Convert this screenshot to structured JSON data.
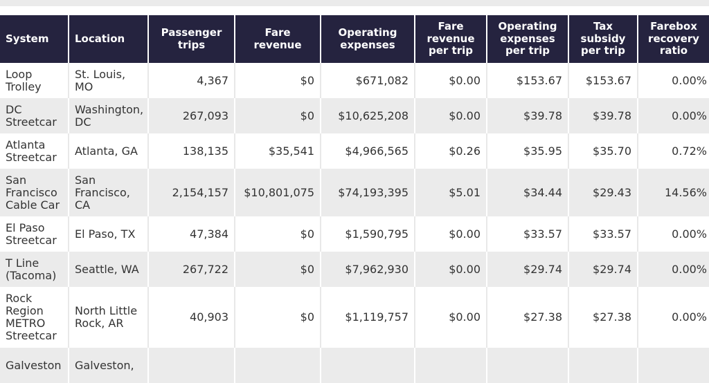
{
  "headers": [
    "System",
    "Location",
    "Passenger trips",
    "Fare revenue",
    "Operating expenses",
    "Fare revenue per trip",
    "Operating expenses per trip",
    "Tax subsidy per trip",
    "Farebox recovery ratio"
  ],
  "rows": [
    [
      "Loop Trolley",
      "St. Louis, MO",
      "4,367",
      "$0",
      "$671,082",
      "$0.00",
      "$153.67",
      "$153.67",
      "0.00%"
    ],
    [
      "DC Streetcar",
      "Washington, DC",
      "267,093",
      "$0",
      "$10,625,208",
      "$0.00",
      "$39.78",
      "$39.78",
      "0.00%"
    ],
    [
      "Atlanta Streetcar",
      "Atlanta, GA",
      "138,135",
      "$35,541",
      "$4,966,565",
      "$0.26",
      "$35.95",
      "$35.70",
      "0.72%"
    ],
    [
      "San Francisco Cable Car",
      "San Francisco, CA",
      "2,154,157",
      "$10,801,075",
      "$74,193,395",
      "$5.01",
      "$34.44",
      "$29.43",
      "14.56%"
    ],
    [
      "El Paso Streetcar",
      "El Paso, TX",
      "47,384",
      "$0",
      "$1,590,795",
      "$0.00",
      "$33.57",
      "$33.57",
      "0.00%"
    ],
    [
      "T Line (Tacoma)",
      "Seattle, WA",
      "267,722",
      "$0",
      "$7,962,930",
      "$0.00",
      "$29.74",
      "$29.74",
      "0.00%"
    ],
    [
      "Rock Region METRO Streetcar",
      "North Little Rock, AR",
      "40,903",
      "$0",
      "$1,119,757",
      "$0.00",
      "$27.38",
      "$27.38",
      "0.00%"
    ],
    [
      "Galveston",
      "Galveston,",
      "",
      "",
      "",
      "",
      "",
      "",
      ""
    ]
  ]
}
